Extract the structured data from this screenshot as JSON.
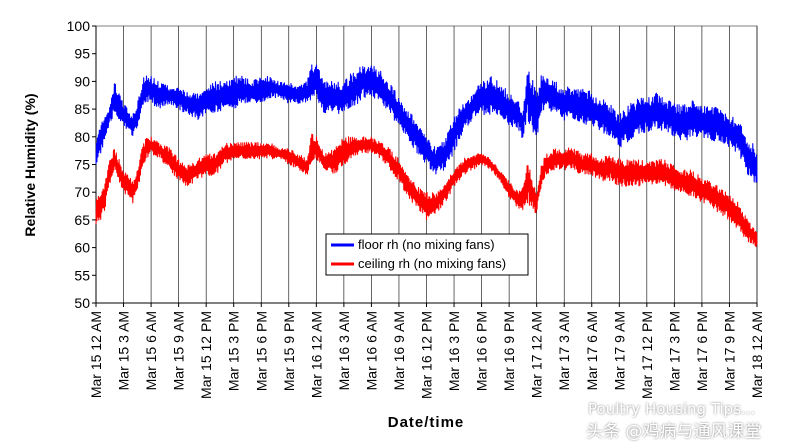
{
  "chart_data": {
    "type": "line",
    "xlabel": "Date/time",
    "ylabel": "Relative Humidity (%)",
    "ylim": [
      50,
      100
    ],
    "yticks": [
      50,
      55,
      60,
      65,
      70,
      75,
      80,
      85,
      90,
      95,
      100
    ],
    "xlim_hours": [
      0,
      72
    ],
    "x_ticks": [
      "Mar 15  12 AM",
      "Mar 15  3 AM",
      "Mar 15  6 AM",
      "Mar 15  9 AM",
      "Mar 15  12 PM",
      "Mar 15  3 PM",
      "Mar 15  6 PM",
      "Mar 15  9 PM",
      "Mar 16  12 AM",
      "Mar 16  3 AM",
      "Mar 16  6 AM",
      "Mar 16  9 AM",
      "Mar 16  12 PM",
      "Mar 16  3 PM",
      "Mar 16  6 PM",
      "Mar 16  9 PM",
      "Mar 17  12 AM",
      "Mar 17  3 AM",
      "Mar 17  6 AM",
      "Mar 17  9 AM",
      "Mar 17  12 PM",
      "Mar 17  3 PM",
      "Mar 17  6 PM",
      "Mar 17  9 PM",
      "Mar 18  12 AM"
    ],
    "grid": "vertical",
    "legend_position": "bottom-center",
    "series": [
      {
        "name": "floor rh (no mixing fans)",
        "color": "#0000ff",
        "x": [
          0,
          0.5,
          1,
          1.5,
          2,
          2.5,
          3,
          3.5,
          4,
          4.5,
          5,
          5.5,
          6,
          7,
          8,
          9,
          10,
          11,
          12,
          13,
          14,
          15,
          16,
          17,
          18,
          19,
          20,
          21,
          22,
          23,
          23.5,
          24,
          24.5,
          25,
          26,
          27,
          28,
          29,
          30,
          31,
          32,
          33,
          34,
          35,
          36,
          37,
          38,
          39,
          40,
          41,
          42,
          43,
          44,
          45,
          46,
          46.5,
          47,
          47.5,
          48,
          48.5,
          49,
          50,
          51,
          52,
          53,
          54,
          55,
          56,
          57,
          58,
          59,
          60,
          61,
          62,
          63,
          64,
          65,
          66,
          67,
          68,
          69,
          70,
          71,
          72
        ],
        "y_min": [
          75,
          77,
          79,
          82,
          84,
          83,
          82,
          81,
          80,
          81,
          84,
          86,
          86,
          85,
          86,
          85,
          84,
          83,
          84,
          84,
          85,
          85,
          86,
          86,
          86,
          87,
          87,
          86,
          86,
          86,
          86,
          87,
          85,
          84,
          84,
          84,
          85,
          87,
          87,
          86,
          84,
          82,
          79,
          77,
          75,
          73,
          74,
          77,
          81,
          83,
          84,
          84,
          83,
          82,
          81,
          79,
          83,
          81,
          79,
          84,
          85,
          84,
          83,
          83,
          82,
          82,
          81,
          80,
          78,
          79,
          80,
          81,
          81,
          81,
          80,
          79,
          80,
          80,
          79,
          79,
          78,
          77,
          73,
          71
        ],
        "y_max": [
          80,
          82,
          84,
          86,
          90,
          88,
          86,
          85,
          84,
          86,
          90,
          92,
          91,
          90,
          89,
          89,
          88,
          88,
          89,
          90,
          90,
          91,
          91,
          90,
          91,
          91,
          90,
          90,
          89,
          90,
          94,
          93,
          92,
          90,
          90,
          90,
          92,
          93,
          93,
          92,
          90,
          87,
          85,
          83,
          80,
          78,
          80,
          84,
          86,
          88,
          90,
          91,
          90,
          88,
          87,
          85,
          93,
          91,
          88,
          92,
          91,
          90,
          89,
          89,
          89,
          88,
          87,
          86,
          84,
          86,
          87,
          87,
          88,
          87,
          86,
          86,
          87,
          86,
          86,
          85,
          84,
          83,
          80,
          78
        ]
      },
      {
        "name": "ceiling rh (no mixing fans)",
        "color": "#ff0000",
        "x": [
          0,
          0.5,
          1,
          1.5,
          2,
          2.5,
          3,
          3.5,
          4,
          4.5,
          5,
          5.5,
          6,
          7,
          8,
          9,
          10,
          11,
          12,
          13,
          14,
          15,
          16,
          17,
          18,
          19,
          20,
          21,
          22,
          23,
          23.5,
          24,
          24.5,
          25,
          26,
          27,
          28,
          29,
          30,
          31,
          32,
          33,
          34,
          35,
          36,
          37,
          38,
          39,
          40,
          41,
          42,
          43,
          44,
          45,
          46,
          46.5,
          47,
          47.5,
          48,
          48.5,
          49,
          50,
          51,
          52,
          53,
          54,
          55,
          56,
          57,
          58,
          59,
          60,
          61,
          62,
          63,
          64,
          65,
          66,
          67,
          68,
          69,
          70,
          71,
          72
        ],
        "y_min": [
          64,
          65,
          67,
          71,
          74,
          72,
          70,
          69,
          68,
          70,
          74,
          76,
          77,
          76,
          74,
          72,
          71,
          72,
          73,
          73,
          75,
          76,
          76,
          76,
          76,
          76,
          76,
          75,
          74,
          73,
          75,
          76,
          75,
          74,
          73,
          75,
          76,
          77,
          77,
          76,
          74,
          72,
          69,
          67,
          65,
          66,
          68,
          71,
          73,
          74,
          75,
          74,
          72,
          69,
          67,
          66,
          68,
          67,
          66,
          71,
          73,
          74,
          74,
          74,
          73,
          73,
          72,
          72,
          71,
          71,
          71,
          71,
          71,
          71,
          70,
          70,
          69,
          68,
          67,
          66,
          65,
          63,
          61,
          60
        ],
        "y_max": [
          69,
          70,
          72,
          76,
          78,
          76,
          74,
          73,
          72,
          74,
          78,
          80,
          80,
          79,
          78,
          76,
          75,
          76,
          77,
          77,
          79,
          79,
          79,
          79,
          79,
          79,
          78,
          78,
          77,
          76,
          81,
          80,
          78,
          77,
          78,
          80,
          80,
          80,
          80,
          79,
          78,
          76,
          73,
          71,
          70,
          70,
          72,
          74,
          76,
          77,
          77,
          76,
          74,
          72,
          70,
          71,
          77,
          72,
          70,
          75,
          77,
          78,
          78,
          78,
          77,
          77,
          76,
          77,
          76,
          76,
          76,
          76,
          76,
          76,
          75,
          74,
          74,
          73,
          72,
          71,
          70,
          68,
          65,
          63
        ]
      }
    ]
  },
  "watermark": {
    "source_text": "Poultry Housing Tips...",
    "credit_text": "头条 @鸡病与通风课堂"
  }
}
